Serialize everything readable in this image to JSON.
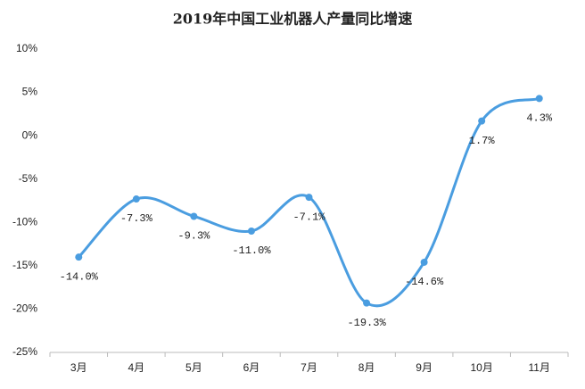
{
  "chart_data": {
    "type": "line",
    "title": "2019年中国工业机器人产量同比增速",
    "categories": [
      "3月",
      "4月",
      "5月",
      "6月",
      "7月",
      "8月",
      "9月",
      "10月",
      "11月"
    ],
    "values": [
      -14.0,
      -7.3,
      -9.3,
      -11.0,
      -7.1,
      -19.3,
      -14.6,
      1.7,
      4.3
    ],
    "value_labels": [
      "-14.0%",
      "-7.3%",
      "-9.3%",
      "-11.0%",
      "-7.1%",
      "-19.3%",
      "-14.6%",
      "1.7%",
      "4.3%"
    ],
    "color": "#4a9de0",
    "ylim": [
      -25,
      10
    ],
    "yticks": [
      {
        "value": -25,
        "label": "-25%"
      },
      {
        "value": -20,
        "label": "-20%"
      },
      {
        "value": -15,
        "label": "-15%"
      },
      {
        "value": -10,
        "label": "-10%"
      },
      {
        "value": -5,
        "label": "-5%"
      },
      {
        "value": 0,
        "label": "0%"
      },
      {
        "value": 5,
        "label": "5%"
      },
      {
        "value": 10,
        "label": "10%"
      }
    ],
    "grid": false
  }
}
